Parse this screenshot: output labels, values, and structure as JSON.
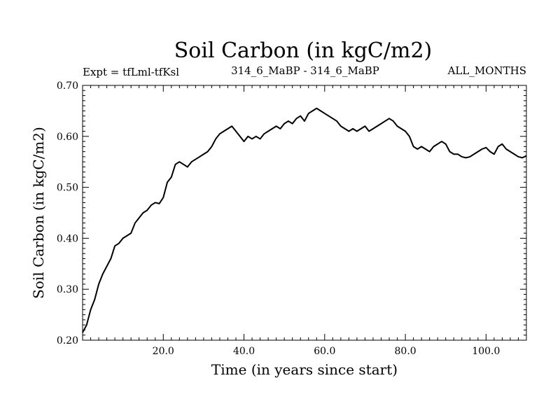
{
  "chart_data": {
    "type": "line",
    "title": "Soil Carbon (in kgC/m2)",
    "subtitle_left": "Expt = tfLml-tfKsl",
    "subtitle_center": "314_6_MaBP - 314_6_MaBP",
    "subtitle_right": "ALL_MONTHS",
    "xlabel": "Time (in years since start)",
    "ylabel": "Soil Carbon (in kgC/m2)",
    "xlim": [
      0,
      110
    ],
    "ylim": [
      0.2,
      0.7
    ],
    "x_ticks": [
      20,
      40,
      60,
      80,
      100
    ],
    "x_tick_labels": [
      "20.0",
      "40.0",
      "60.0",
      "80.0",
      "100.0"
    ],
    "y_ticks": [
      0.2,
      0.3,
      0.4,
      0.5,
      0.6,
      0.7
    ],
    "y_tick_labels": [
      "0.20",
      "0.30",
      "0.40",
      "0.50",
      "0.60",
      "0.70"
    ],
    "grid": false,
    "series": [
      {
        "name": "Soil Carbon",
        "color": "#000000",
        "x": [
          0,
          1,
          2,
          3,
          4,
          5,
          6,
          7,
          8,
          9,
          10,
          11,
          12,
          13,
          14,
          15,
          16,
          17,
          18,
          19,
          20,
          21,
          22,
          23,
          24,
          25,
          26,
          27,
          28,
          29,
          30,
          31,
          32,
          33,
          34,
          35,
          36,
          37,
          38,
          39,
          40,
          41,
          42,
          43,
          44,
          45,
          46,
          47,
          48,
          49,
          50,
          51,
          52,
          53,
          54,
          55,
          56,
          57,
          58,
          59,
          60,
          61,
          62,
          63,
          64,
          65,
          66,
          67,
          68,
          69,
          70,
          71,
          72,
          73,
          74,
          75,
          76,
          77,
          78,
          79,
          80,
          81,
          82,
          83,
          84,
          85,
          86,
          87,
          88,
          89,
          90,
          91,
          92,
          93,
          94,
          95,
          96,
          97,
          98,
          99,
          100,
          101,
          102,
          103,
          104,
          105,
          106,
          107,
          108,
          109,
          110
        ],
        "values": [
          0.215,
          0.23,
          0.26,
          0.28,
          0.31,
          0.33,
          0.345,
          0.36,
          0.385,
          0.39,
          0.4,
          0.405,
          0.41,
          0.43,
          0.44,
          0.45,
          0.455,
          0.465,
          0.47,
          0.468,
          0.48,
          0.51,
          0.52,
          0.545,
          0.55,
          0.545,
          0.54,
          0.55,
          0.555,
          0.56,
          0.565,
          0.57,
          0.58,
          0.595,
          0.605,
          0.61,
          0.615,
          0.62,
          0.61,
          0.6,
          0.59,
          0.6,
          0.595,
          0.6,
          0.595,
          0.605,
          0.61,
          0.615,
          0.62,
          0.615,
          0.625,
          0.63,
          0.625,
          0.635,
          0.64,
          0.63,
          0.645,
          0.65,
          0.655,
          0.65,
          0.645,
          0.64,
          0.635,
          0.63,
          0.62,
          0.615,
          0.61,
          0.615,
          0.61,
          0.615,
          0.62,
          0.61,
          0.615,
          0.62,
          0.625,
          0.63,
          0.635,
          0.63,
          0.62,
          0.615,
          0.61,
          0.6,
          0.58,
          0.575,
          0.58,
          0.575,
          0.57,
          0.58,
          0.585,
          0.59,
          0.585,
          0.57,
          0.565,
          0.565,
          0.56,
          0.558,
          0.56,
          0.565,
          0.57,
          0.575,
          0.578,
          0.57,
          0.565,
          0.58,
          0.585,
          0.575,
          0.57,
          0.565,
          0.56,
          0.558,
          0.562
        ]
      }
    ]
  }
}
